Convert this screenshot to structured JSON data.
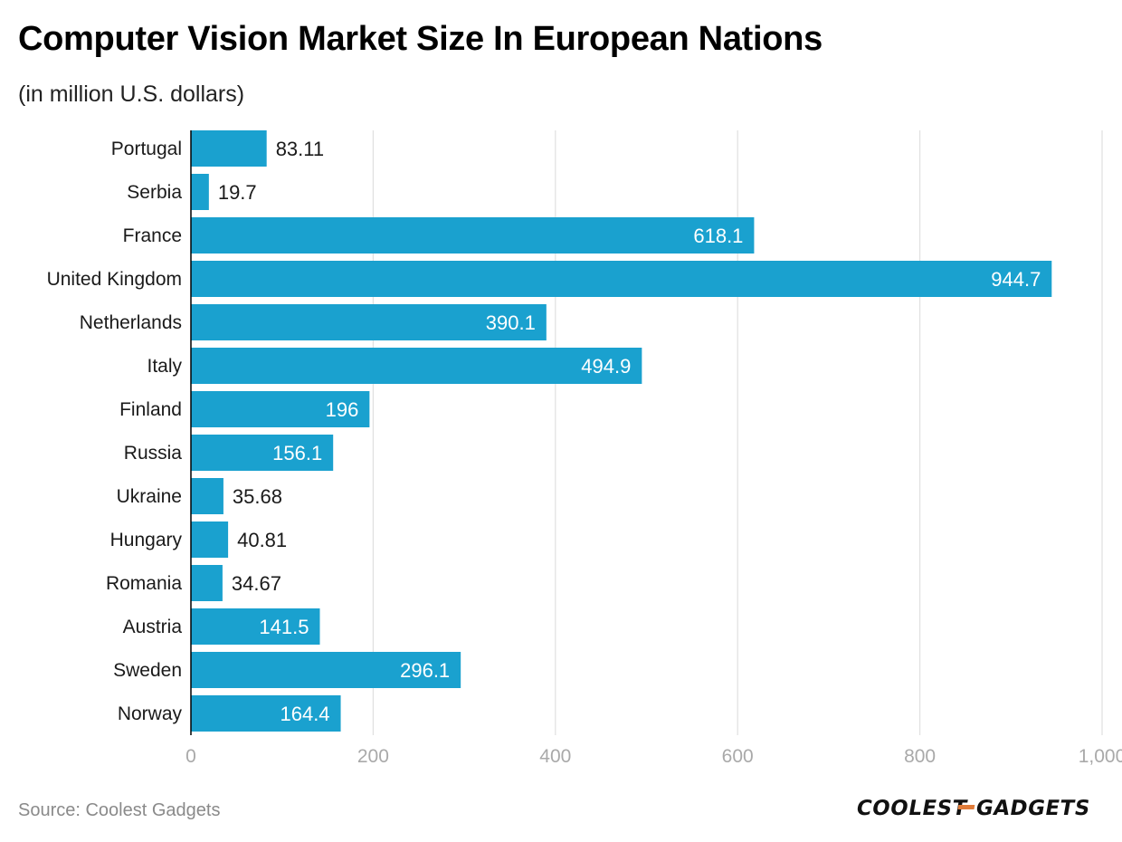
{
  "chart_data": {
    "type": "bar",
    "orientation": "horizontal",
    "title": "Computer Vision Market Size In European Nations",
    "subtitle": "(in million U.S. dollars)",
    "categories": [
      "Portugal",
      "Serbia",
      "France",
      "United Kingdom",
      "Netherlands",
      "Italy",
      "Finland",
      "Russia",
      "Ukraine",
      "Hungary",
      "Romania",
      "Austria",
      "Sweden",
      "Norway"
    ],
    "values": [
      83.11,
      19.7,
      618.1,
      944.7,
      390.1,
      494.9,
      196,
      156.1,
      35.68,
      40.81,
      34.67,
      141.5,
      296.1,
      164.4
    ],
    "value_labels": [
      "83.11",
      "19.7",
      "618.1",
      "944.7",
      "390.1",
      "494.9",
      "196",
      "156.1",
      "35.68",
      "40.81",
      "34.67",
      "141.5",
      "296.1",
      "164.4"
    ],
    "xlim": [
      0,
      1000
    ],
    "x_ticks": [
      0,
      200,
      400,
      600,
      800,
      1000
    ],
    "x_tick_labels": [
      "0",
      "200",
      "400",
      "600",
      "800",
      "1,000"
    ],
    "grid": true,
    "legend": "none",
    "bar_color": "#1aa1cf"
  },
  "footer": {
    "source": "Source: Coolest Gadgets",
    "brand_text": "COOLEST-GADGETS"
  },
  "colors": {
    "bar": "#1aa1cf",
    "grid": "#e0e0e0",
    "axis": "#000000",
    "tick_text": "#a9a9a9",
    "logo_accent": "#e07b39"
  }
}
